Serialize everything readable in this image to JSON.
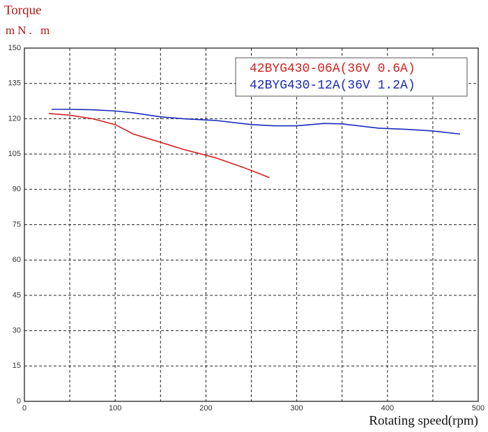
{
  "chart_data": {
    "type": "line",
    "title": "Torque",
    "y_label": "mN. m",
    "x_label": "Rotating speed(rpm)",
    "xlim": [
      0,
      500
    ],
    "xticks": [
      0,
      100,
      200,
      300,
      400,
      500
    ],
    "x_minor_grid": [
      50,
      150,
      250,
      350,
      450
    ],
    "ylim": [
      0,
      150
    ],
    "yticks": [
      0,
      15,
      30,
      45,
      60,
      75,
      90,
      105,
      120,
      135,
      150
    ],
    "grid": true,
    "legend": "upper right",
    "series": [
      {
        "name": "42BYG430-06A(36V 0.6A)",
        "color": "#d42020",
        "x": [
          27,
          50,
          75,
          100,
          120,
          150,
          175,
          210,
          240,
          270
        ],
        "values": [
          122.2,
          121.5,
          120,
          117.5,
          113.5,
          110,
          107,
          103.5,
          99.5,
          95
        ]
      },
      {
        "name": "42BYG430-12A(36V 1.2A)",
        "color": "#1a2ab8",
        "x": [
          30,
          50,
          75,
          100,
          120,
          150,
          175,
          210,
          250,
          275,
          300,
          330,
          350,
          390,
          420,
          450,
          480
        ],
        "values": [
          124,
          124,
          123.8,
          123.3,
          122.5,
          120.8,
          120,
          119.3,
          117.5,
          117,
          117,
          118,
          117.8,
          116,
          115.5,
          114.8,
          113.5
        ]
      }
    ]
  }
}
